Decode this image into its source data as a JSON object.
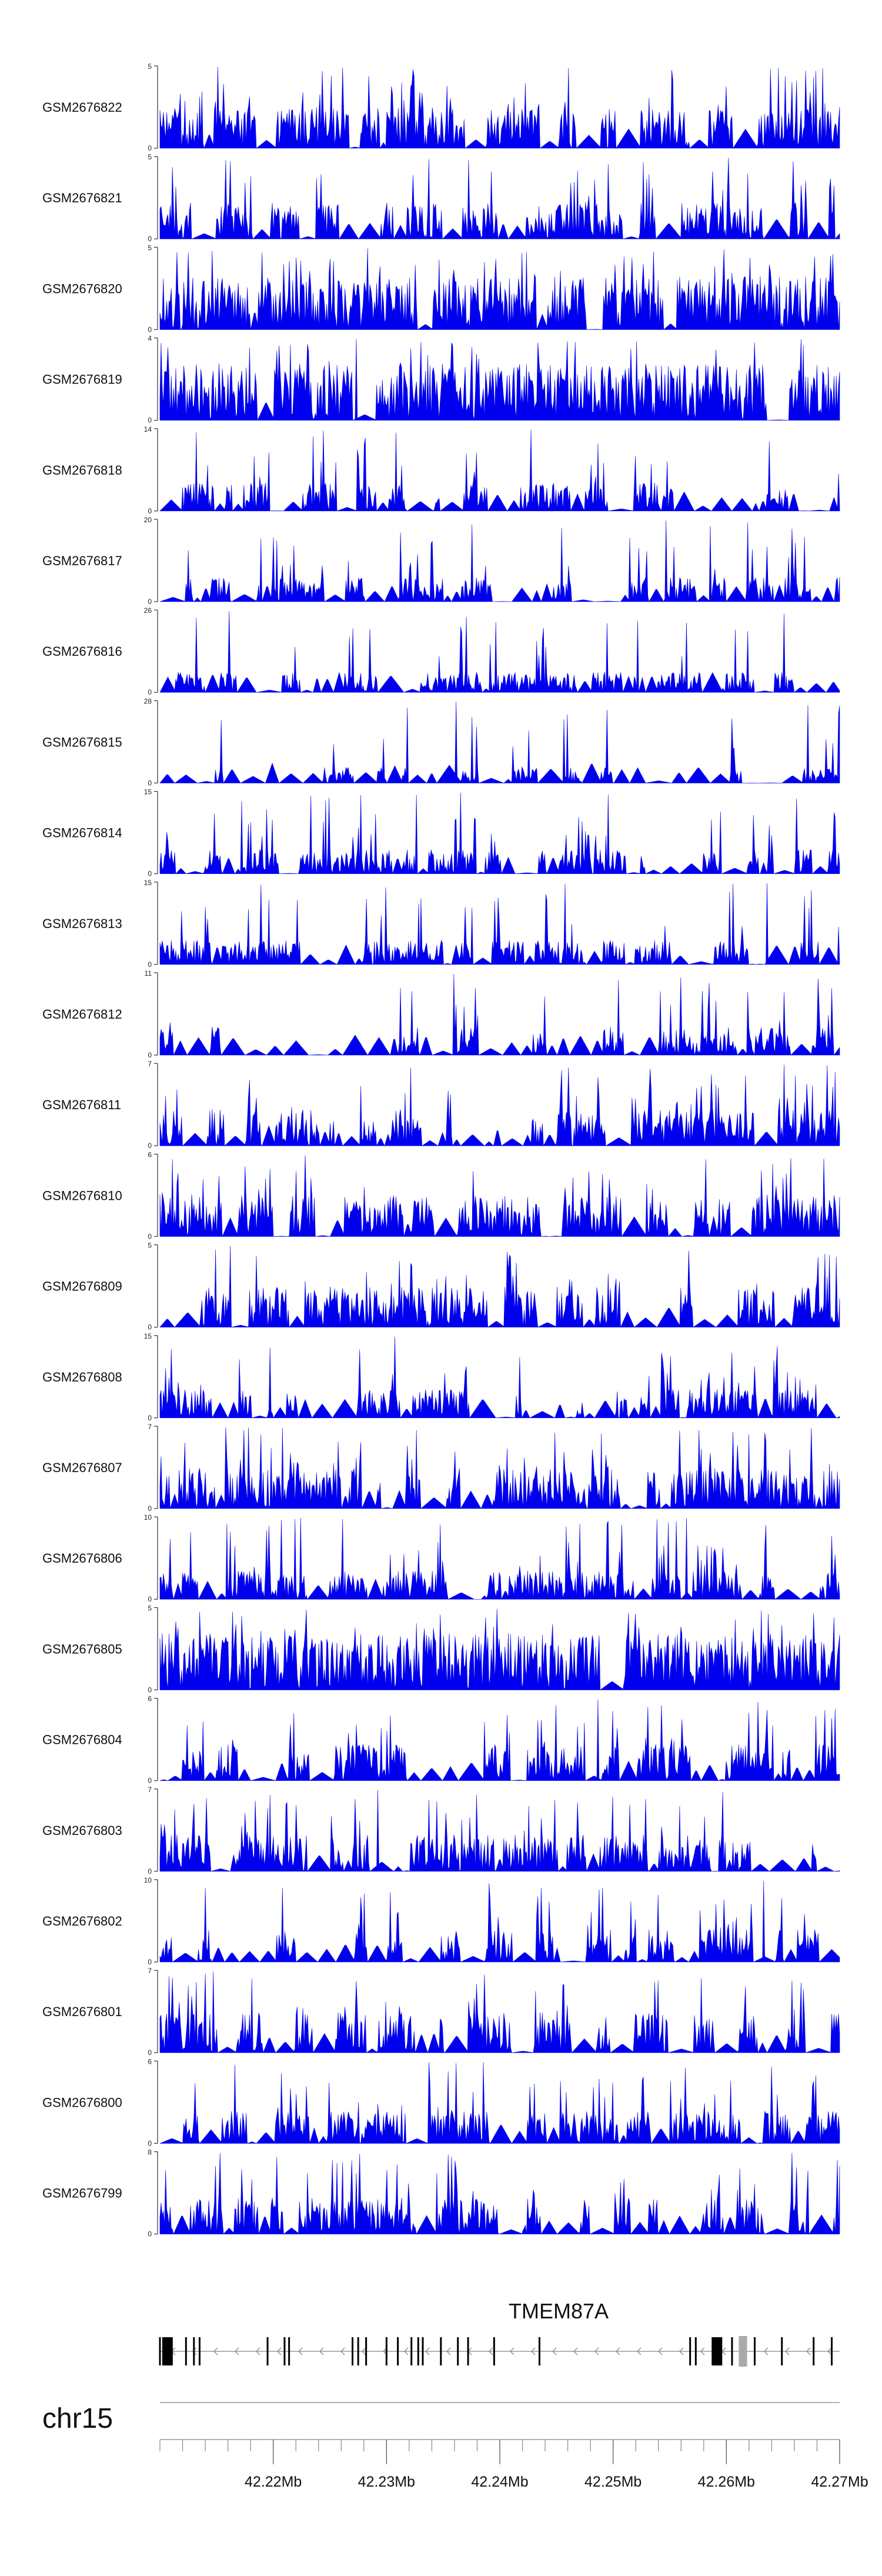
{
  "chart_data": {
    "type": "area",
    "chromosome": "chr15",
    "gene": {
      "name": "TMEM87A",
      "strand": "-",
      "exons": [
        42210000,
        42212300,
        42213000,
        42213500,
        42219500,
        42221000,
        42221400,
        42227000,
        42227500,
        42228200,
        42230000,
        42231000,
        42232200,
        42232800,
        42233200,
        42234800,
        42236300,
        42237200,
        42239500,
        42243500,
        42256800,
        42257300,
        42260500,
        42262500,
        42264900,
        42267700,
        42269300
      ],
      "utr_blocks": [
        42210200,
        42258700
      ],
      "noncoding_exon": 42261100
    },
    "genome_axis": {
      "range": [
        42210000,
        42270000
      ],
      "major_ticks": [
        42220000,
        42230000,
        42240000,
        42250000,
        42260000,
        42270000
      ],
      "major_labels": [
        "42.22Mb",
        "42.23Mb",
        "42.24Mb",
        "42.25Mb",
        "42.26Mb",
        "42.27Mb"
      ],
      "minor_tick_step": 2000
    },
    "series": [
      {
        "name": "GSM2676822",
        "ymax": 5,
        "ylabels": [
          "5",
          "0"
        ],
        "color": "#0000ee",
        "seed": 22,
        "density": 0.5,
        "gap": 0.25
      },
      {
        "name": "GSM2676821",
        "ymax": 5,
        "ylabels": [
          "5",
          "0"
        ],
        "color": "#0000ee",
        "seed": 21,
        "density": 0.45,
        "gap": 0.25
      },
      {
        "name": "GSM2676820",
        "ymax": 5,
        "ylabels": [
          "5",
          "0"
        ],
        "color": "#0000ee",
        "seed": 20,
        "density": 0.65,
        "gap": 0.05
      },
      {
        "name": "GSM2676819",
        "ymax": 4,
        "ylabels": [
          "4",
          "0"
        ],
        "color": "#0000ee",
        "seed": 19,
        "density": 0.7,
        "gap": 0.05
      },
      {
        "name": "GSM2676818",
        "ymax": 14,
        "ylabels": [
          "14",
          "0"
        ],
        "color": "#0000ee",
        "seed": 18,
        "density": 0.35,
        "gap": 0.4
      },
      {
        "name": "GSM2676817",
        "ymax": 20,
        "ylabels": [
          "20",
          "0"
        ],
        "color": "#0000ee",
        "seed": 17,
        "density": 0.3,
        "gap": 0.45
      },
      {
        "name": "GSM2676816",
        "ymax": 26,
        "ylabels": [
          "26",
          "0"
        ],
        "color": "#0000ee",
        "seed": 16,
        "density": 0.25,
        "gap": 0.55
      },
      {
        "name": "GSM2676815",
        "ymax": 28,
        "ylabels": [
          "28",
          "0"
        ],
        "color": "#0000ee",
        "seed": 15,
        "density": 0.2,
        "gap": 0.55
      },
      {
        "name": "GSM2676814",
        "ymax": 15,
        "ylabels": [
          "15",
          "0"
        ],
        "color": "#0000ee",
        "seed": 14,
        "density": 0.3,
        "gap": 0.45
      },
      {
        "name": "GSM2676813",
        "ymax": 15,
        "ylabels": [
          "15",
          "0"
        ],
        "color": "#0000ee",
        "seed": 13,
        "density": 0.3,
        "gap": 0.45
      },
      {
        "name": "GSM2676812",
        "ymax": 11,
        "ylabels": [
          "11",
          "0"
        ],
        "color": "#0000ee",
        "seed": 12,
        "density": 0.35,
        "gap": 0.4
      },
      {
        "name": "GSM2676811",
        "ymax": 7,
        "ylabels": [
          "7",
          "0"
        ],
        "color": "#0000ee",
        "seed": 11,
        "density": 0.45,
        "gap": 0.3
      },
      {
        "name": "GSM2676810",
        "ymax": 6,
        "ylabels": [
          "6",
          "0"
        ],
        "color": "#0000ee",
        "seed": 10,
        "density": 0.5,
        "gap": 0.2
      },
      {
        "name": "GSM2676809",
        "ymax": 5,
        "ylabels": [
          "5",
          "0"
        ],
        "color": "#0000ee",
        "seed": 9,
        "density": 0.5,
        "gap": 0.25
      },
      {
        "name": "GSM2676808",
        "ymax": 15,
        "ylabels": [
          "15",
          "0"
        ],
        "color": "#0000ee",
        "seed": 8,
        "density": 0.35,
        "gap": 0.4
      },
      {
        "name": "GSM2676807",
        "ymax": 7,
        "ylabels": [
          "7",
          "0"
        ],
        "color": "#0000ee",
        "seed": 7,
        "density": 0.5,
        "gap": 0.2
      },
      {
        "name": "GSM2676806",
        "ymax": 10,
        "ylabels": [
          "10",
          "0"
        ],
        "color": "#0000ee",
        "seed": 6,
        "density": 0.35,
        "gap": 0.4
      },
      {
        "name": "GSM2676805",
        "ymax": 5,
        "ylabels": [
          "5",
          "0"
        ],
        "color": "#0000ee",
        "seed": 5,
        "density": 0.7,
        "gap": 0.05
      },
      {
        "name": "GSM2676804",
        "ymax": 6,
        "ylabels": [
          "6",
          "0"
        ],
        "color": "#0000ee",
        "seed": 4,
        "density": 0.45,
        "gap": 0.3
      },
      {
        "name": "GSM2676803",
        "ymax": 7,
        "ylabels": [
          "7",
          "0"
        ],
        "color": "#0000ee",
        "seed": 3,
        "density": 0.45,
        "gap": 0.3
      },
      {
        "name": "GSM2676802",
        "ymax": 10,
        "ylabels": [
          "10",
          "0"
        ],
        "color": "#0000ee",
        "seed": 2,
        "density": 0.4,
        "gap": 0.35
      },
      {
        "name": "GSM2676801",
        "ymax": 7,
        "ylabels": [
          "7",
          "0"
        ],
        "color": "#0000ee",
        "seed": 1,
        "density": 0.5,
        "gap": 0.25
      },
      {
        "name": "GSM2676800",
        "ymax": 6,
        "ylabels": [
          "6",
          "0"
        ],
        "color": "#0000ee",
        "seed": 100,
        "density": 0.4,
        "gap": 0.35
      },
      {
        "name": "GSM2676799",
        "ymax": 8,
        "ylabels": [
          "8",
          "0"
        ],
        "color": "#0000ee",
        "seed": 99,
        "density": 0.45,
        "gap": 0.3
      }
    ]
  }
}
